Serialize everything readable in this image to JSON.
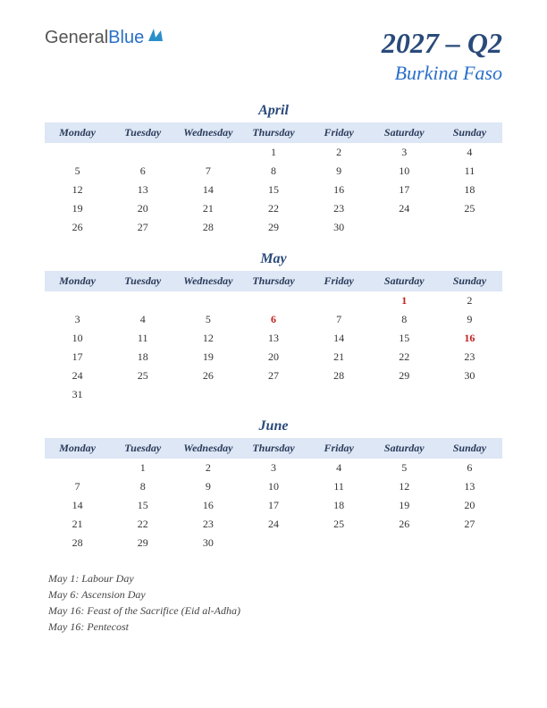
{
  "logo": {
    "part1": "General",
    "part2": "Blue"
  },
  "header": {
    "quarter": "2027 – Q2",
    "country": "Burkina Faso"
  },
  "day_headers": [
    "Monday",
    "Tuesday",
    "Wednesday",
    "Thursday",
    "Friday",
    "Saturday",
    "Sunday"
  ],
  "colors": {
    "header_bg": "#dde7f5",
    "title_color": "#2a4a7a",
    "accent_color": "#2a6fc9",
    "holiday_color": "#c02020",
    "text_color": "#333333",
    "bg": "#ffffff"
  },
  "months": [
    {
      "name": "April",
      "weeks": [
        [
          "",
          "",
          "",
          "1",
          "2",
          "3",
          "4"
        ],
        [
          "5",
          "6",
          "7",
          "8",
          "9",
          "10",
          "11"
        ],
        [
          "12",
          "13",
          "14",
          "15",
          "16",
          "17",
          "18"
        ],
        [
          "19",
          "20",
          "21",
          "22",
          "23",
          "24",
          "25"
        ],
        [
          "26",
          "27",
          "28",
          "29",
          "30",
          "",
          ""
        ]
      ],
      "holidays_cells": []
    },
    {
      "name": "May",
      "weeks": [
        [
          "",
          "",
          "",
          "",
          "",
          "1",
          "2"
        ],
        [
          "3",
          "4",
          "5",
          "6",
          "7",
          "8",
          "9"
        ],
        [
          "10",
          "11",
          "12",
          "13",
          "14",
          "15",
          "16"
        ],
        [
          "17",
          "18",
          "19",
          "20",
          "21",
          "22",
          "23"
        ],
        [
          "24",
          "25",
          "26",
          "27",
          "28",
          "29",
          "30"
        ],
        [
          "31",
          "",
          "",
          "",
          "",
          "",
          ""
        ]
      ],
      "holidays_cells": [
        [
          0,
          5
        ],
        [
          1,
          3
        ],
        [
          2,
          6
        ]
      ]
    },
    {
      "name": "June",
      "weeks": [
        [
          "",
          "1",
          "2",
          "3",
          "4",
          "5",
          "6"
        ],
        [
          "7",
          "8",
          "9",
          "10",
          "11",
          "12",
          "13"
        ],
        [
          "14",
          "15",
          "16",
          "17",
          "18",
          "19",
          "20"
        ],
        [
          "21",
          "22",
          "23",
          "24",
          "25",
          "26",
          "27"
        ],
        [
          "28",
          "29",
          "30",
          "",
          "",
          "",
          ""
        ]
      ],
      "holidays_cells": []
    }
  ],
  "holiday_list": [
    "May 1: Labour Day",
    "May 6: Ascension Day",
    "May 16: Feast of the Sacrifice (Eid al-Adha)",
    "  May 16: Pentecost"
  ]
}
